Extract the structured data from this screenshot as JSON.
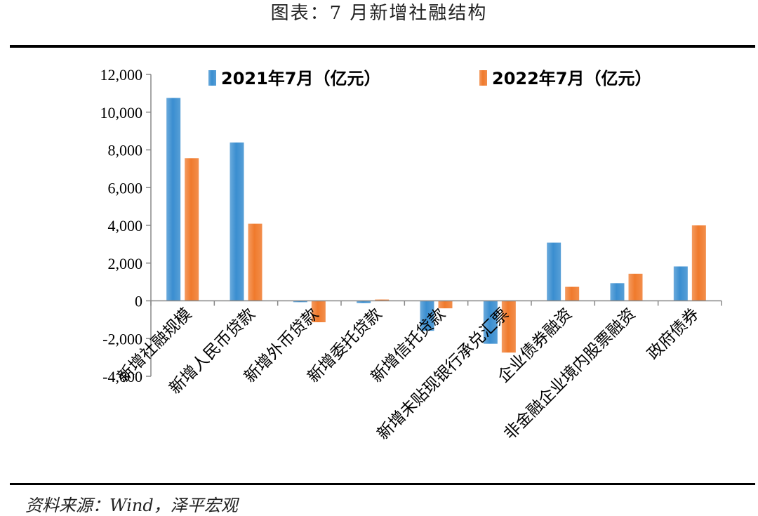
{
  "page": {
    "title": "图表：7 月新增社融结构",
    "source": "资料来源：Wind，泽平宏观"
  },
  "chart_data": {
    "type": "bar",
    "categories": [
      "新增社融规模",
      "新增人民币贷款",
      "新增外币贷款",
      "新增委托贷款",
      "新增信托贷款",
      "新增未贴现银行承兑汇票",
      "企业债券融资",
      "非金融企业境内股票融资",
      "政府债券"
    ],
    "series": [
      {
        "name": "2021年7月（亿元）",
        "color": "#3a8ed0",
        "values": [
          10752,
          8391,
          -70,
          -120,
          -1588,
          -2276,
          3085,
          936,
          1823
        ]
      },
      {
        "name": "2022年7月（亿元）",
        "color": "#f07a2c",
        "values": [
          7561,
          4088,
          -1135,
          70,
          -397,
          -2743,
          742,
          1437,
          3998
        ]
      }
    ],
    "ylim": [
      -4000,
      12000
    ],
    "yticks": [
      12000,
      10000,
      8000,
      6000,
      4000,
      2000,
      0,
      -2000,
      -4000
    ],
    "ytick_labels": [
      "12,000",
      "10,000",
      "8,000",
      "6,000",
      "4,000",
      "2,000",
      "0",
      "-2,000",
      "-4,000"
    ],
    "legend_position": "top",
    "grid": false
  }
}
